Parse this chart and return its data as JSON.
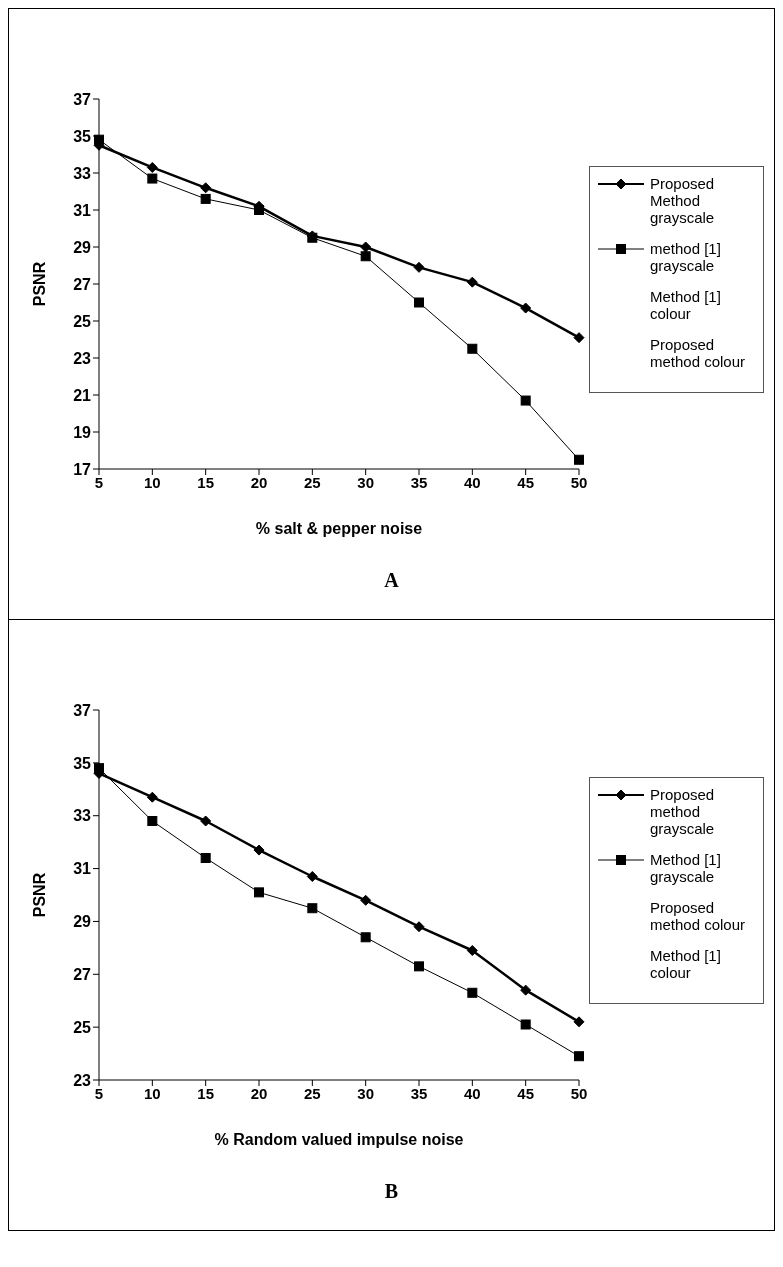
{
  "chart_data": [
    {
      "type": "line",
      "xlabel": "% salt & pepper noise",
      "ylabel": "PSNR",
      "categories": [
        "5",
        "10",
        "15",
        "20",
        "25",
        "30",
        "35",
        "40",
        "45",
        "50"
      ],
      "ylim": [
        17,
        37
      ],
      "yticks": [
        17,
        19,
        21,
        23,
        25,
        27,
        29,
        31,
        33,
        35,
        37
      ],
      "grid": false,
      "legend": "right",
      "annotations": [
        "A"
      ],
      "series": [
        {
          "name": "Proposed Method grayscale",
          "color": "#000000",
          "marker": "diamond",
          "values": [
            34.5,
            33.3,
            32.2,
            31.2,
            29.6,
            29.0,
            27.9,
            27.1,
            25.7,
            24.1
          ]
        },
        {
          "name": "method [1] grayscale",
          "color": "#000000",
          "marker": "square",
          "values": [
            34.8,
            32.7,
            31.6,
            31.0,
            29.5,
            28.5,
            26.0,
            23.5,
            20.7,
            17.5
          ]
        },
        {
          "name": "Method [1] colour",
          "values": [
            null,
            null,
            null,
            null,
            null,
            null,
            null,
            null,
            null,
            null
          ]
        },
        {
          "name": "Proposed method colour",
          "values": [
            null,
            null,
            null,
            null,
            null,
            null,
            null,
            null,
            null,
            null
          ]
        }
      ]
    },
    {
      "type": "line",
      "xlabel": "% Random valued impulse noise",
      "ylabel": "PSNR",
      "categories": [
        "5",
        "10",
        "15",
        "20",
        "25",
        "30",
        "35",
        "40",
        "45",
        "50"
      ],
      "ylim": [
        23,
        37
      ],
      "yticks": [
        23,
        25,
        27,
        29,
        31,
        33,
        35,
        37
      ],
      "grid": false,
      "legend": "right",
      "annotations": [
        "B"
      ],
      "series": [
        {
          "name": "Proposed method grayscale",
          "color": "#000000",
          "marker": "diamond",
          "values": [
            34.6,
            33.7,
            32.8,
            31.7,
            30.7,
            29.8,
            28.8,
            27.9,
            26.4,
            25.2
          ]
        },
        {
          "name": "Method [1] grayscale",
          "color": "#000000",
          "marker": "square",
          "values": [
            34.8,
            32.8,
            31.4,
            30.1,
            29.5,
            28.4,
            27.3,
            26.3,
            25.1,
            23.9
          ]
        },
        {
          "name": "Proposed method colour",
          "values": [
            null,
            null,
            null,
            null,
            null,
            null,
            null,
            null,
            null,
            null
          ]
        },
        {
          "name": "Method [1] colour",
          "values": [
            null,
            null,
            null,
            null,
            null,
            null,
            null,
            null,
            null,
            null
          ]
        }
      ]
    }
  ]
}
